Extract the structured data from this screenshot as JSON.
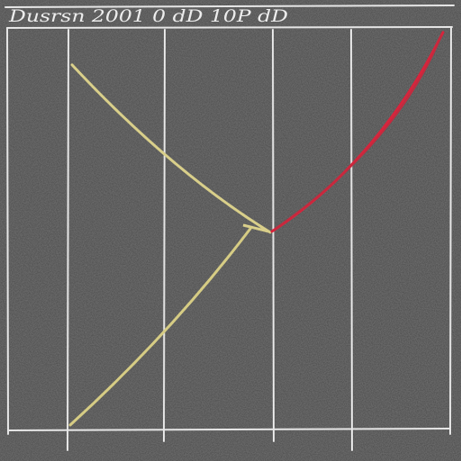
{
  "header": {
    "text": "Dusrsn 2001 0 dD 10P dD"
  }
}
